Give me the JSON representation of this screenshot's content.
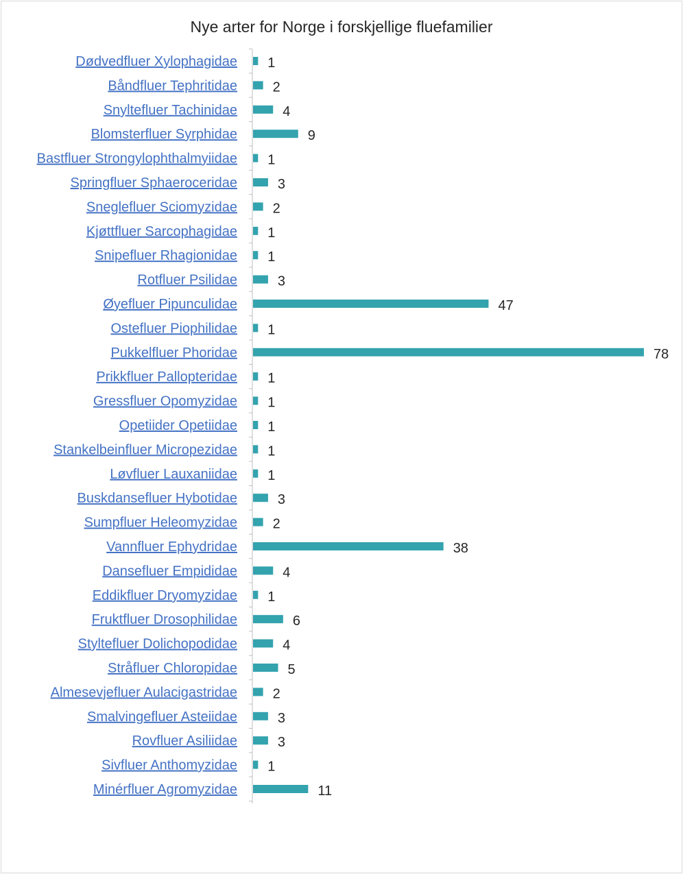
{
  "chart_data": {
    "type": "bar",
    "orientation": "horizontal",
    "title": "Nye arter for Norge i forskjellige fluefamilier",
    "categories": [
      "Dødvedfluer Xylophagidae",
      "Båndfluer Tephritidae",
      "Snyltefluer Tachinidae",
      "Blomsterfluer Syrphidae",
      "Bastfluer Strongylophthalmyiidae",
      "Springfluer Sphaeroceridae",
      "Sneglefluer Sciomyzidae",
      "Kjøttfluer Sarcophagidae",
      "Snipefluer Rhagionidae",
      "Rotfluer Psilidae",
      "Øyefluer Pipunculidae",
      "Ostefluer Piophilidae",
      "Pukkelfluer Phoridae",
      "Prikkfluer Pallopteridae",
      "Gressfluer Opomyzidae",
      "Opetiider Opetiidae",
      "Stankelbeinfluer Micropezidae",
      "Løvfluer Lauxaniidae",
      "Buskdansefluer Hybotidae",
      "Sumpfluer Heleomyzidae",
      "Vannfluer Ephydridae",
      "Dansefluer Empididae",
      "Eddikfluer Dryomyzidae",
      "Fruktfluer Drosophilidae",
      "Styltefluer Dolichopodidae",
      "Stråfluer Chloropidae",
      "Almesevjefluer Aulacigastridae",
      "Smalvingefluer Asteiidae",
      "Rovfluer Asiliidae",
      "Sivfluer Anthomyzidae",
      "Minérfluer Agromyzidae"
    ],
    "values": [
      1,
      2,
      4,
      9,
      1,
      3,
      2,
      1,
      1,
      3,
      47,
      1,
      78,
      1,
      1,
      1,
      1,
      1,
      3,
      2,
      38,
      4,
      1,
      6,
      4,
      5,
      2,
      3,
      3,
      1,
      11
    ],
    "xlim": [
      0,
      78
    ],
    "grid": false,
    "legend": "none",
    "data_labels": true,
    "colors": {
      "bar": "#33a3ae",
      "category_label": "#4472c4",
      "value_label": "#262626"
    }
  }
}
